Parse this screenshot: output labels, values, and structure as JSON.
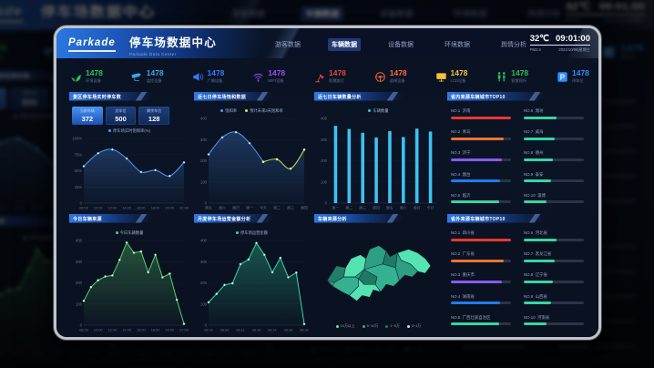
{
  "header": {
    "logo": "Parkade",
    "title": "停车场数据中心",
    "subtitle": "Parkade Data Center",
    "nav": [
      {
        "label": "游客数据",
        "active": false
      },
      {
        "label": "车辆数据",
        "active": true
      },
      {
        "label": "设备数据",
        "active": false
      },
      {
        "label": "环境数据",
        "active": false
      },
      {
        "label": "舆情分析",
        "active": false
      }
    ],
    "temperature": "32℃",
    "time": "09:01:00",
    "pm_label": "PM2.6",
    "date": "2021/10/06|星期三"
  },
  "stats": [
    {
      "icon": "leaf-icon",
      "value": "1478",
      "label": "环境设备",
      "color": "#2fc25b"
    },
    {
      "icon": "cctv-camera-icon",
      "value": "1478",
      "label": "监控设备",
      "color": "#38a8ea"
    },
    {
      "icon": "speaker-icon",
      "value": "1478",
      "label": "广播设备",
      "color": "#3b7bff"
    },
    {
      "icon": "wifi-icon",
      "value": "1478",
      "label": "WIFI设备",
      "color": "#9a4df5"
    },
    {
      "icon": "street-lamp-icon",
      "value": "1478",
      "label": "智慧路灯",
      "color": "#e8453c"
    },
    {
      "icon": "steering-wheel-icon",
      "value": "1478",
      "label": "道闸设备",
      "color": "#ff6b3d"
    },
    {
      "icon": "lcd-screen-icon",
      "value": "1478",
      "label": "LCD设备",
      "color": "#f5c33b"
    },
    {
      "icon": "restroom-icon",
      "value": "1478",
      "label": "智慧厕所",
      "color": "#2fc25b"
    },
    {
      "icon": "parking-sign-icon",
      "value": "1478",
      "label": "停车位",
      "color": "#2f8fff"
    }
  ],
  "panels": {
    "realtime": {
      "title": "景区停车场实时停车数",
      "boxes": [
        {
          "label": "当前车辆",
          "value": "372"
        },
        {
          "label": "总车位",
          "value": "500"
        },
        {
          "label": "剩余车位",
          "value": "128"
        }
      ],
      "legend": "停车场实时饱和率(%)"
    },
    "trend7": {
      "title": "近七日停车场饱和数据",
      "legends": [
        {
          "label": "饱和率",
          "color": "#4f9bff"
        },
        {
          "label": "预计未来3天饱和率",
          "color": "#c6e84a"
        }
      ]
    },
    "count7": {
      "title": "近七日车辆数量分析",
      "legend": {
        "label": "车辆数量",
        "color": "#3ec1f0"
      }
    },
    "top_province": {
      "title": "省内来源车辆城市TOP10",
      "items": [
        {
          "rank": "NO.1",
          "name": "济南",
          "pct": 100,
          "color": "#e8392f"
        },
        {
          "rank": "NO.2",
          "name": "青岛",
          "pct": 88,
          "color": "#f2722e"
        },
        {
          "rank": "NO.3",
          "name": "济宁",
          "pct": 85,
          "color": "#8859f6"
        },
        {
          "rank": "NO.4",
          "name": "烟台",
          "pct": 82,
          "color": "#1f7cf4"
        },
        {
          "rank": "NO.5",
          "name": "临沂",
          "pct": 80,
          "color": "#35d6a5"
        },
        {
          "rank": "NO.6",
          "name": "潍坊",
          "pct": 55,
          "color": "#35d6a5"
        },
        {
          "rank": "NO.7",
          "name": "威海",
          "pct": 52,
          "color": "#35d6a5"
        },
        {
          "rank": "NO.8",
          "name": "德州",
          "pct": 48,
          "color": "#35d6a5"
        },
        {
          "rank": "NO.9",
          "name": "泰安",
          "pct": 45,
          "color": "#35d6a5"
        },
        {
          "rank": "NO.10",
          "name": "淄博",
          "pct": 38,
          "color": "#35d6a5"
        }
      ]
    },
    "today_source": {
      "title": "今日车辆来源",
      "legend": {
        "label": "今日车辆数量",
        "color": "#5ad06e"
      }
    },
    "monthly_amount": {
      "title": "月度停车场运营金额分析",
      "legend": {
        "label": "停车场运营金额",
        "color": "#35d6a5"
      }
    },
    "source_map": {
      "title": "车辆来源分析",
      "legend": [
        {
          "label": "10万以上",
          "color": "#5ee8b8"
        },
        {
          "label": "5~10万",
          "color": "#34b190"
        },
        {
          "label": "1~5万",
          "color": "#1f7a63"
        },
        {
          "label": "0~1万",
          "color": "#bfeede"
        }
      ]
    },
    "top_outside": {
      "title": "省外来源车辆城市TOP10",
      "items": [
        {
          "rank": "NO.1",
          "name": "四川省",
          "pct": 100,
          "color": "#e8392f"
        },
        {
          "rank": "NO.2",
          "name": "广东省",
          "pct": 88,
          "color": "#f2722e"
        },
        {
          "rank": "NO.3",
          "name": "重庆市",
          "pct": 85,
          "color": "#8859f6"
        },
        {
          "rank": "NO.4",
          "name": "湖南省",
          "pct": 82,
          "color": "#1f7cf4"
        },
        {
          "rank": "NO.5",
          "name": "广西壮族自治区",
          "pct": 80,
          "color": "#35d6a5"
        },
        {
          "rank": "NO.6",
          "name": "河北省",
          "pct": 55,
          "color": "#35d6a5"
        },
        {
          "rank": "NO.7",
          "name": "黑龙江省",
          "pct": 52,
          "color": "#35d6a5"
        },
        {
          "rank": "NO.8",
          "name": "辽宁省",
          "pct": 48,
          "color": "#35d6a5"
        },
        {
          "rank": "NO.9",
          "name": "山西省",
          "pct": 45,
          "color": "#35d6a5"
        },
        {
          "rank": "NO.10",
          "name": "河南省",
          "pct": 38,
          "color": "#35d6a5"
        }
      ]
    }
  },
  "chart_data": [
    {
      "id": "saturation",
      "type": "line",
      "title": "停车场实时饱和率(%)",
      "x": [
        "08:00",
        "10:00",
        "12:00",
        "14:00",
        "16:00",
        "18:00",
        "20:00",
        "22:00"
      ],
      "values": [
        57,
        77,
        83,
        69,
        48,
        51,
        42,
        63
      ],
      "ylim": [
        0,
        100
      ],
      "yticks": [
        "0",
        "25%",
        "50%",
        "75%",
        "100%"
      ],
      "color": "#4f9bff"
    },
    {
      "id": "trend",
      "type": "line",
      "title": "近七日停车场饱和数据",
      "x": [
        "周五",
        "周六",
        "周日",
        "周一",
        "今天",
        "周二",
        "周三",
        "周四"
      ],
      "series": [
        {
          "name": "饱和率",
          "color": "#4f9bff",
          "values": [
            230,
            310,
            335,
            283,
            195,
            null,
            null,
            null
          ]
        },
        {
          "name": "预计未来3天饱和率",
          "color": "#c6e84a",
          "values": [
            null,
            null,
            null,
            null,
            195,
            207,
            163,
            252
          ]
        }
      ],
      "ylim": [
        0,
        400
      ],
      "yticks": [
        "0",
        "100",
        "200",
        "300",
        "400"
      ]
    },
    {
      "id": "count",
      "type": "bar",
      "title": "近七日车辆数量分析",
      "x": [
        "周一",
        "周二",
        "周三",
        "周四",
        "周五",
        "周六",
        "周日",
        "今日"
      ],
      "values": [
        365,
        350,
        332,
        310,
        340,
        312,
        352,
        338
      ],
      "ylim": [
        0,
        400
      ],
      "yticks": [
        "0",
        "100",
        "200",
        "300",
        "400"
      ],
      "color": "#3ec1f0"
    },
    {
      "id": "today_source",
      "type": "area",
      "title": "今日车辆来源",
      "x": [
        "08:00",
        "10:00",
        "12:00",
        "14:00",
        "16:00",
        "18:00",
        "20:00",
        "22:00"
      ],
      "values": [
        115,
        180,
        212,
        230,
        235,
        308,
        390,
        342,
        348,
        250,
        332,
        226,
        243,
        120,
        6
      ],
      "ylim": [
        0,
        400
      ],
      "yticks": [
        "0",
        "100",
        "200",
        "300",
        "400"
      ],
      "color": "#5ad06e"
    },
    {
      "id": "monthly_amount",
      "type": "area",
      "title": "月度停车场运营金额分析",
      "x": [
        "08.01",
        "08.06",
        "08.11",
        "08.16",
        "08.21",
        "08.26",
        "08.31"
      ],
      "values": [
        108,
        148,
        190,
        198,
        288,
        310,
        388,
        332,
        250,
        318,
        226,
        248,
        5
      ],
      "ylim": [
        0,
        400
      ],
      "yticks": [
        "0",
        "100",
        "200",
        "300",
        "400"
      ],
      "color": "#35d6a5"
    }
  ]
}
